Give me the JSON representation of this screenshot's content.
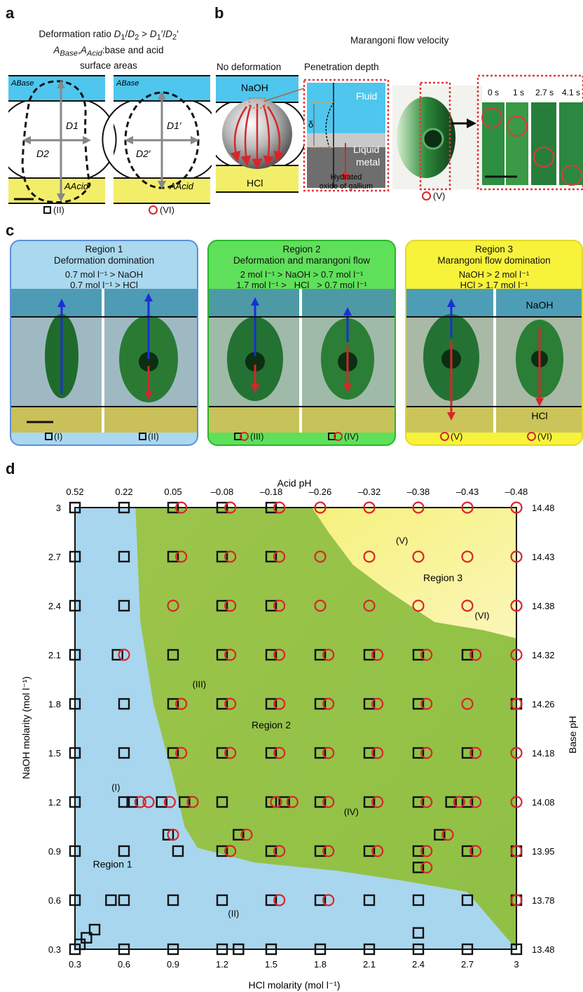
{
  "panel_labels": {
    "a": "a",
    "b": "b",
    "c": "c",
    "d": "d"
  },
  "panel_a": {
    "caption_line1": "Deformation ratio D1/D2 > D1′/D2′",
    "caption_line2": "ABase,AAcid:base and acid",
    "caption_line3": "surface areas",
    "a_base": "ABase",
    "a_acid": "AAcid",
    "d1": "D1",
    "d2": "D2",
    "d1p": "D1′",
    "d2p": "D2′",
    "label_left": "(II)",
    "label_right": "(VI)"
  },
  "panel_b": {
    "title": "Marangoni flow velocity",
    "no_deformation": "No deformation",
    "penetration_depth": "Penetration depth",
    "naoh": "NaOH",
    "hcl": "HCl",
    "fluid": "Fluid",
    "liquid_metal": "Liquid metal",
    "delta": "δ",
    "hydrated": "Hydrated oxide of gallium",
    "v_label": "(V)",
    "times": [
      "0 s",
      "1 s",
      "2.7 s",
      "4.1 s"
    ]
  },
  "panel_c": {
    "regions": [
      {
        "title": "Region 1",
        "subtitle": "Deformation domination",
        "cond1": "0.7 mol l⁻¹ > NaOH",
        "cond2": "0.7 mol l⁻¹ > HCl",
        "labels": [
          "(I)",
          "(II)"
        ],
        "color": "#a9d8ef",
        "border": "#5b8fd9"
      },
      {
        "title": "Region 2",
        "subtitle": "Deformation and marangoni flow",
        "cond1": "2 mol l⁻¹ > NaOH > 0.7 mol l⁻¹",
        "cond2": "1.7 mol l⁻¹ >   HCl   > 0.7 mol l⁻¹",
        "labels": [
          "(III)",
          "(IV)"
        ],
        "color": "#5fe05a",
        "border": "#2bb52a"
      },
      {
        "title": "Region 3",
        "subtitle": "Marangoni flow domination",
        "cond1": "NaOH > 2 mol l⁻¹",
        "cond2": "HCl > 1.7 mol l⁻¹",
        "labels": [
          "(V)",
          "(VI)"
        ],
        "color": "#f7f23a",
        "border": "#e3d92a"
      }
    ],
    "naoh": "NaOH",
    "hcl": "HCl"
  },
  "chart_data": {
    "type": "scatter",
    "title": "",
    "xlabel": "HCl molarity (mol l⁻¹)",
    "ylabel": "NaOH molarity (mol l⁻¹)",
    "x2label": "Acid pH",
    "y2label": "Base pH",
    "xlim": [
      0.3,
      3
    ],
    "ylim": [
      0.3,
      3
    ],
    "x_ticks": [
      0.3,
      0.6,
      0.9,
      1.2,
      1.5,
      1.8,
      2.1,
      2.4,
      2.7,
      3
    ],
    "y_ticks": [
      0.3,
      0.6,
      0.9,
      1.2,
      1.5,
      1.8,
      2.1,
      2.4,
      2.7,
      3
    ],
    "acid_ph_ticks": [
      "0.52",
      "0.22",
      "0.05",
      "–0.08",
      "–0.18",
      "–0.26",
      "–0.32",
      "–0.38",
      "–0.43",
      "–0.48"
    ],
    "base_ph_ticks": [
      "13.48",
      "13.78",
      "13.95",
      "14.08",
      "14.18",
      "14.26",
      "14.32",
      "14.38",
      "14.43",
      "14.48"
    ],
    "region_labels": [
      {
        "text": "Region 1",
        "x": 0.53,
        "y": 0.8
      },
      {
        "text": "Region 2",
        "x": 1.5,
        "y": 1.65
      },
      {
        "text": "Region 3",
        "x": 2.55,
        "y": 2.55
      }
    ],
    "point_labels": [
      {
        "text": "(I)",
        "x": 0.55,
        "y": 1.27
      },
      {
        "text": "(II)",
        "x": 1.27,
        "y": 0.5
      },
      {
        "text": "(III)",
        "x": 1.06,
        "y": 1.9
      },
      {
        "text": "(IV)",
        "x": 1.99,
        "y": 1.12
      },
      {
        "text": "(V)",
        "x": 2.3,
        "y": 2.78
      },
      {
        "text": "(VI)",
        "x": 2.79,
        "y": 2.32
      }
    ],
    "series": [
      {
        "name": "deformation",
        "marker": "square",
        "points": [
          [
            0.3,
            3
          ],
          [
            0.6,
            3
          ],
          [
            0.9,
            3
          ],
          [
            1.2,
            3
          ],
          [
            1.5,
            3
          ],
          [
            0.3,
            2.7
          ],
          [
            0.6,
            2.7
          ],
          [
            0.9,
            2.7
          ],
          [
            1.2,
            2.7
          ],
          [
            1.5,
            2.7
          ],
          [
            0.3,
            2.4
          ],
          [
            0.6,
            2.4
          ],
          [
            1.2,
            2.4
          ],
          [
            1.5,
            2.4
          ],
          [
            0.3,
            2.1
          ],
          [
            0.56,
            2.1
          ],
          [
            0.9,
            2.1
          ],
          [
            1.2,
            2.1
          ],
          [
            1.5,
            2.1
          ],
          [
            1.8,
            2.1
          ],
          [
            2.1,
            2.1
          ],
          [
            2.4,
            2.1
          ],
          [
            2.7,
            2.1
          ],
          [
            0.3,
            1.8
          ],
          [
            0.6,
            1.8
          ],
          [
            0.9,
            1.8
          ],
          [
            1.2,
            1.8
          ],
          [
            1.5,
            1.8
          ],
          [
            1.8,
            1.8
          ],
          [
            2.1,
            1.8
          ],
          [
            2.4,
            1.8
          ],
          [
            3,
            1.8
          ],
          [
            0.3,
            1.5
          ],
          [
            0.6,
            1.5
          ],
          [
            0.9,
            1.5
          ],
          [
            1.2,
            1.5
          ],
          [
            1.5,
            1.5
          ],
          [
            1.8,
            1.5
          ],
          [
            2.1,
            1.5
          ],
          [
            2.4,
            1.5
          ],
          [
            2.7,
            1.5
          ],
          [
            0.3,
            1.2
          ],
          [
            0.6,
            1.2
          ],
          [
            0.65,
            1.2
          ],
          [
            0.83,
            1.2
          ],
          [
            0.97,
            1.2
          ],
          [
            1.2,
            1.2
          ],
          [
            1.5,
            1.2
          ],
          [
            1.58,
            1.2
          ],
          [
            1.8,
            1.2
          ],
          [
            2.1,
            1.2
          ],
          [
            2.4,
            1.2
          ],
          [
            2.6,
            1.2
          ],
          [
            2.7,
            1.2
          ],
          [
            0.87,
            1.0
          ],
          [
            0.93,
            0.9
          ],
          [
            1.3,
            1.0
          ],
          [
            2.53,
            1.0
          ],
          [
            0.3,
            0.9
          ],
          [
            0.6,
            0.9
          ],
          [
            1.2,
            0.9
          ],
          [
            1.5,
            0.9
          ],
          [
            1.8,
            0.9
          ],
          [
            2.1,
            0.9
          ],
          [
            2.4,
            0.9
          ],
          [
            2.7,
            0.9
          ],
          [
            3,
            0.9
          ],
          [
            2.4,
            0.8
          ],
          [
            0.3,
            0.6
          ],
          [
            0.52,
            0.6
          ],
          [
            0.6,
            0.6
          ],
          [
            0.9,
            0.6
          ],
          [
            1.2,
            0.6
          ],
          [
            1.5,
            0.6
          ],
          [
            1.8,
            0.6
          ],
          [
            2.1,
            0.6
          ],
          [
            2.4,
            0.6
          ],
          [
            2.7,
            0.6
          ],
          [
            3,
            0.6
          ],
          [
            0.3,
            0.3
          ],
          [
            0.33,
            0.33
          ],
          [
            0.37,
            0.37
          ],
          [
            0.42,
            0.42
          ],
          [
            0.6,
            0.3
          ],
          [
            0.9,
            0.3
          ],
          [
            1.2,
            0.3
          ],
          [
            1.3,
            0.3
          ],
          [
            1.5,
            0.3
          ],
          [
            1.8,
            0.3
          ],
          [
            2.1,
            0.3
          ],
          [
            2.4,
            0.4
          ],
          [
            2.4,
            0.3
          ],
          [
            2.7,
            0.3
          ],
          [
            3,
            0.3
          ]
        ]
      },
      {
        "name": "marangoni",
        "marker": "circle",
        "points": [
          [
            0.95,
            3
          ],
          [
            1.25,
            3
          ],
          [
            1.55,
            3
          ],
          [
            1.8,
            3
          ],
          [
            2.1,
            3
          ],
          [
            2.4,
            3
          ],
          [
            2.7,
            3
          ],
          [
            3,
            3
          ],
          [
            0.95,
            2.7
          ],
          [
            1.25,
            2.7
          ],
          [
            1.55,
            2.7
          ],
          [
            1.8,
            2.7
          ],
          [
            2.1,
            2.7
          ],
          [
            2.4,
            2.7
          ],
          [
            2.7,
            2.7
          ],
          [
            3,
            2.7
          ],
          [
            0.9,
            2.4
          ],
          [
            1.25,
            2.4
          ],
          [
            1.55,
            2.4
          ],
          [
            1.8,
            2.4
          ],
          [
            2.1,
            2.4
          ],
          [
            2.4,
            2.4
          ],
          [
            2.7,
            2.4
          ],
          [
            3,
            2.4
          ],
          [
            0.6,
            2.1
          ],
          [
            1.25,
            2.1
          ],
          [
            1.55,
            2.1
          ],
          [
            1.85,
            2.1
          ],
          [
            2.15,
            2.1
          ],
          [
            2.45,
            2.1
          ],
          [
            2.75,
            2.1
          ],
          [
            3,
            2.1
          ],
          [
            0.95,
            1.8
          ],
          [
            1.25,
            1.8
          ],
          [
            1.55,
            1.8
          ],
          [
            1.85,
            1.8
          ],
          [
            2.15,
            1.8
          ],
          [
            2.45,
            1.8
          ],
          [
            2.7,
            1.8
          ],
          [
            3,
            1.8
          ],
          [
            0.95,
            1.5
          ],
          [
            1.25,
            1.5
          ],
          [
            1.55,
            1.5
          ],
          [
            1.85,
            1.5
          ],
          [
            2.15,
            1.5
          ],
          [
            2.45,
            1.5
          ],
          [
            2.75,
            1.5
          ],
          [
            3,
            1.5
          ],
          [
            0.7,
            1.2
          ],
          [
            0.75,
            1.2
          ],
          [
            0.88,
            1.2
          ],
          [
            1.02,
            1.2
          ],
          [
            1.53,
            1.2
          ],
          [
            1.63,
            1.2
          ],
          [
            1.85,
            1.2
          ],
          [
            2.15,
            1.2
          ],
          [
            2.45,
            1.2
          ],
          [
            2.65,
            1.2
          ],
          [
            2.75,
            1.2
          ],
          [
            3,
            1.2
          ],
          [
            0.9,
            1.0
          ],
          [
            1.35,
            1.0
          ],
          [
            2.58,
            1.0
          ],
          [
            1.25,
            0.9
          ],
          [
            1.55,
            0.9
          ],
          [
            1.85,
            0.9
          ],
          [
            2.15,
            0.9
          ],
          [
            2.45,
            0.9
          ],
          [
            2.75,
            0.9
          ],
          [
            3,
            0.9
          ],
          [
            2.45,
            0.8
          ],
          [
            1.55,
            0.6
          ],
          [
            1.85,
            0.6
          ],
          [
            3,
            0.6
          ]
        ]
      }
    ]
  }
}
